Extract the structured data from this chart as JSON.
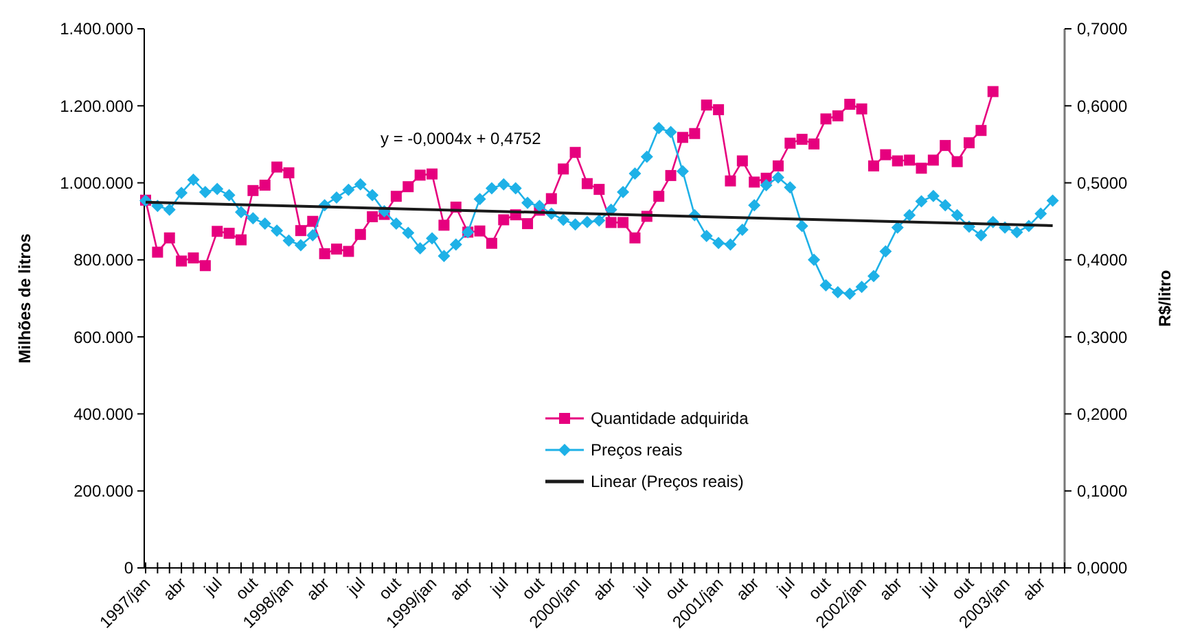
{
  "chart_data": {
    "type": "line",
    "ylabel": "Milhões de litros",
    "y2label": "R$/litro",
    "categories": [
      "1997/jan",
      null,
      null,
      "abr",
      null,
      null,
      "jul",
      null,
      null,
      "out",
      null,
      null,
      "1998/jan",
      null,
      null,
      "abr",
      null,
      null,
      "jul",
      null,
      null,
      "out",
      null,
      null,
      "1999/jan",
      null,
      null,
      "abr",
      null,
      null,
      "jul",
      null,
      null,
      "out",
      null,
      null,
      "2000/jan",
      null,
      null,
      "abr",
      null,
      null,
      "jul",
      null,
      null,
      "out",
      null,
      null,
      "2001/jan",
      null,
      null,
      "abr",
      null,
      null,
      "jul",
      null,
      null,
      "out",
      null,
      null,
      "2002/jan",
      null,
      null,
      "abr",
      null,
      null,
      "jul",
      null,
      null,
      "out",
      null,
      null,
      "2003/jan",
      null,
      null,
      "abr",
      null,
      null
    ],
    "series": [
      {
        "name": "Quantidade adquirida",
        "color": "#e6007e",
        "marker": "square",
        "values": [
          955000,
          820000,
          857000,
          797000,
          805000,
          785000,
          874000,
          869000,
          852000,
          980000,
          994000,
          1041000,
          1026000,
          876000,
          900000,
          816000,
          828000,
          822000,
          866000,
          912000,
          918000,
          965000,
          990000,
          1020000,
          1023000,
          890000,
          937000,
          872000,
          875000,
          843000,
          904000,
          917000,
          894000,
          929000,
          959000,
          1036000,
          1079000,
          998000,
          983000,
          897000,
          897000,
          857000,
          913000,
          965000,
          1019000,
          1118000,
          1128000,
          1202000,
          1190000,
          1005000,
          1057000,
          1002000,
          1012000,
          1044000,
          1103000,
          1113000,
          1101000,
          1166000,
          1174000,
          1204000,
          1192000,
          1044000,
          1073000,
          1057000,
          1059000,
          1038000,
          1059000,
          1097000,
          1055000,
          1104000,
          1136000,
          1237000,
          null,
          null,
          null,
          null,
          null,
          null
        ]
      },
      {
        "name": "Preços reais",
        "color": "#1eb1e7",
        "marker": "diamond",
        "axis": "y2",
        "values": [
          0.477,
          0.47,
          0.465,
          0.487,
          0.504,
          0.488,
          0.492,
          0.484,
          0.462,
          0.454,
          0.447,
          0.438,
          0.425,
          0.419,
          0.432,
          0.471,
          0.481,
          0.491,
          0.498,
          0.484,
          0.463,
          0.447,
          0.435,
          0.415,
          0.428,
          0.405,
          0.42,
          0.436,
          0.479,
          0.493,
          0.498,
          0.493,
          0.474,
          0.47,
          0.46,
          0.452,
          0.446,
          0.449,
          0.451,
          0.465,
          0.488,
          0.512,
          0.534,
          0.571,
          0.566,
          0.515,
          0.458,
          0.431,
          0.422,
          0.42,
          0.439,
          0.471,
          0.497,
          0.507,
          0.494,
          0.444,
          0.4,
          0.367,
          0.358,
          0.356,
          0.365,
          0.379,
          0.411,
          0.442,
          0.458,
          0.476,
          0.483,
          0.471,
          0.458,
          0.443,
          0.432,
          0.449,
          0.442,
          0.436,
          0.444,
          0.46,
          0.477,
          null
        ]
      },
      {
        "name": "Linear (Preços reais)",
        "color": "#1a1a1a",
        "marker": "none",
        "axis": "y2",
        "values": [
          0.4748,
          null,
          null,
          null,
          null,
          null,
          null,
          null,
          null,
          null,
          null,
          null,
          null,
          null,
          null,
          null,
          null,
          null,
          null,
          null,
          null,
          null,
          null,
          null,
          null,
          null,
          null,
          null,
          null,
          null,
          null,
          null,
          null,
          null,
          null,
          null,
          null,
          null,
          null,
          null,
          null,
          null,
          null,
          null,
          null,
          null,
          null,
          null,
          null,
          null,
          null,
          null,
          null,
          null,
          null,
          null,
          null,
          null,
          null,
          null,
          null,
          null,
          null,
          null,
          null,
          null,
          null,
          null,
          null,
          null,
          null,
          null,
          null,
          null,
          null,
          null,
          0.4444,
          null
        ]
      }
    ],
    "ylim": [
      0,
      1400000
    ],
    "yticks": [
      0,
      {
        "value": 200000,
        "label": "200.000"
      },
      {
        "value": 400000,
        "label": "400.000"
      },
      {
        "value": 600000,
        "label": "600.000"
      },
      {
        "value": 800000,
        "label": "800.000"
      },
      {
        "value": 1000000,
        "label": "1.000.000"
      },
      {
        "value": 1200000,
        "label": "1.200.000"
      },
      {
        "value": 1400000,
        "label": "1.400.000"
      }
    ],
    "y2lim": [
      0,
      0.7
    ],
    "y2ticks": [
      {
        "value": 0,
        "label": "0,0000"
      },
      {
        "value": 0.1,
        "label": "0,1000"
      },
      {
        "value": 0.2,
        "label": "0,2000"
      },
      {
        "value": 0.3,
        "label": "0,3000"
      },
      {
        "value": 0.4,
        "label": "0,4000"
      },
      {
        "value": 0.5,
        "label": "0,5000"
      },
      {
        "value": 0.6,
        "label": "0,6000"
      },
      {
        "value": 0.7,
        "label": "0,7000"
      }
    ],
    "annotations": [
      "y = -0,0004x + 0,4752"
    ],
    "legend": "bottom",
    "grid": false
  }
}
